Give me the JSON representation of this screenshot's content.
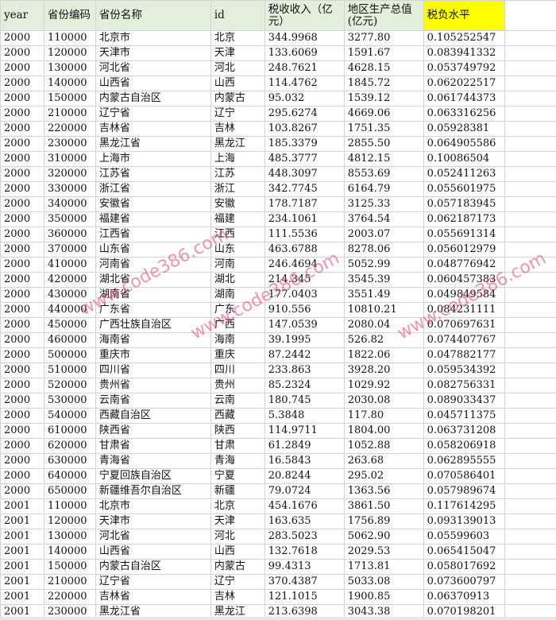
{
  "sheet": {
    "headers": [
      "year",
      "省份编码",
      "省份名称",
      "id",
      "税收收入（亿元）",
      "地区生产总值(亿元)",
      "税负水平"
    ],
    "highlight_color": "#ffff00",
    "header_color": "#e2efda",
    "rows": [
      [
        "2000",
        "110000",
        "北京市",
        "北京",
        "344.9968",
        "3277.80",
        "0.105252547"
      ],
      [
        "2000",
        "120000",
        "天津市",
        "天津",
        "133.6069",
        "1591.67",
        "0.083941332"
      ],
      [
        "2000",
        "130000",
        "河北省",
        "河北",
        "248.7621",
        "4628.15",
        "0.053749792"
      ],
      [
        "2000",
        "140000",
        "山西省",
        "山西",
        "114.4762",
        "1845.72",
        "0.062022517"
      ],
      [
        "2000",
        "150000",
        "内蒙古自治区",
        "内蒙古",
        "95.032",
        "1539.12",
        "0.061744373"
      ],
      [
        "2000",
        "210000",
        "辽宁省",
        "辽宁",
        "295.6274",
        "4669.06",
        "0.063316256"
      ],
      [
        "2000",
        "220000",
        "吉林省",
        "吉林",
        "103.8267",
        "1751.35",
        "0.05928381"
      ],
      [
        "2000",
        "230000",
        "黑龙江省",
        "黑龙江",
        "185.3379",
        "2855.50",
        "0.064905586"
      ],
      [
        "2000",
        "310000",
        "上海市",
        "上海",
        "485.3777",
        "4812.15",
        "0.10086504"
      ],
      [
        "2000",
        "320000",
        "江苏省",
        "江苏",
        "448.3097",
        "8553.69",
        "0.052411263"
      ],
      [
        "2000",
        "330000",
        "浙江省",
        "浙江",
        "342.7745",
        "6164.79",
        "0.055601975"
      ],
      [
        "2000",
        "340000",
        "安徽省",
        "安徽",
        "178.7187",
        "3125.33",
        "0.057183945"
      ],
      [
        "2000",
        "350000",
        "福建省",
        "福建",
        "234.1061",
        "3764.54",
        "0.062187173"
      ],
      [
        "2000",
        "360000",
        "江西省",
        "江西",
        "111.5536",
        "2003.07",
        "0.055691314"
      ],
      [
        "2000",
        "370000",
        "山东省",
        "山东",
        "463.6788",
        "8278.06",
        "0.056012979"
      ],
      [
        "2000",
        "410000",
        "河南省",
        "河南",
        "246.4694",
        "5052.99",
        "0.048776942"
      ],
      [
        "2000",
        "420000",
        "湖北省",
        "湖北",
        "214.345",
        "3545.39",
        "0.060457383"
      ],
      [
        "2000",
        "430000",
        "湖南省",
        "湖南",
        "177.0403",
        "3551.49",
        "0.049849584"
      ],
      [
        "2000",
        "440000",
        "广东省",
        "广东",
        "910.556",
        "10810.21",
        "0.084231111"
      ],
      [
        "2000",
        "450000",
        "广西壮族自治区",
        "广西",
        "147.0539",
        "2080.04",
        "0.070697631"
      ],
      [
        "2000",
        "460000",
        "海南省",
        "海南",
        "39.1995",
        "526.82",
        "0.074407767"
      ],
      [
        "2000",
        "500000",
        "重庆市",
        "重庆",
        "87.2442",
        "1822.06",
        "0.047882177"
      ],
      [
        "2000",
        "510000",
        "四川省",
        "四川",
        "233.863",
        "3928.20",
        "0.059534392"
      ],
      [
        "2000",
        "520000",
        "贵州省",
        "贵州",
        "85.2324",
        "1029.92",
        "0.082756331"
      ],
      [
        "2000",
        "530000",
        "云南省",
        "云南",
        "180.745",
        "2030.08",
        "0.089033437"
      ],
      [
        "2000",
        "540000",
        "西藏自治区",
        "西藏",
        "5.3848",
        "117.80",
        "0.045711375"
      ],
      [
        "2000",
        "610000",
        "陕西省",
        "陕西",
        "114.9711",
        "1804.00",
        "0.063731208"
      ],
      [
        "2000",
        "620000",
        "甘肃省",
        "甘肃",
        "61.2849",
        "1052.88",
        "0.058206918"
      ],
      [
        "2000",
        "630000",
        "青海省",
        "青海",
        "16.5843",
        "263.68",
        "0.062895555"
      ],
      [
        "2000",
        "640000",
        "宁夏回族自治区",
        "宁夏",
        "20.8244",
        "295.02",
        "0.070586401"
      ],
      [
        "2000",
        "650000",
        "新疆维吾尔自治区",
        "新疆",
        "79.0724",
        "1363.56",
        "0.057989674"
      ],
      [
        "2001",
        "110000",
        "北京市",
        "北京",
        "454.1676",
        "3861.50",
        "0.117614295"
      ],
      [
        "2001",
        "120000",
        "天津市",
        "天津",
        "163.635",
        "1756.89",
        "0.093139013"
      ],
      [
        "2001",
        "130000",
        "河北省",
        "河北",
        "283.5023",
        "5062.90",
        "0.05599603"
      ],
      [
        "2001",
        "140000",
        "山西省",
        "山西",
        "132.7618",
        "2029.53",
        "0.065415047"
      ],
      [
        "2001",
        "150000",
        "内蒙古自治区",
        "内蒙古",
        "99.4313",
        "1713.81",
        "0.058017692"
      ],
      [
        "2001",
        "210000",
        "辽宁省",
        "辽宁",
        "370.4387",
        "5033.08",
        "0.073600797"
      ],
      [
        "2001",
        "220000",
        "吉林省",
        "吉林",
        "121.1015",
        "1900.85",
        "0.06370913"
      ],
      [
        "2001",
        "230000",
        "黑龙江省",
        "黑龙江",
        "213.6398",
        "3043.38",
        "0.070198201"
      ]
    ]
  },
  "watermark": "www.code386.com"
}
